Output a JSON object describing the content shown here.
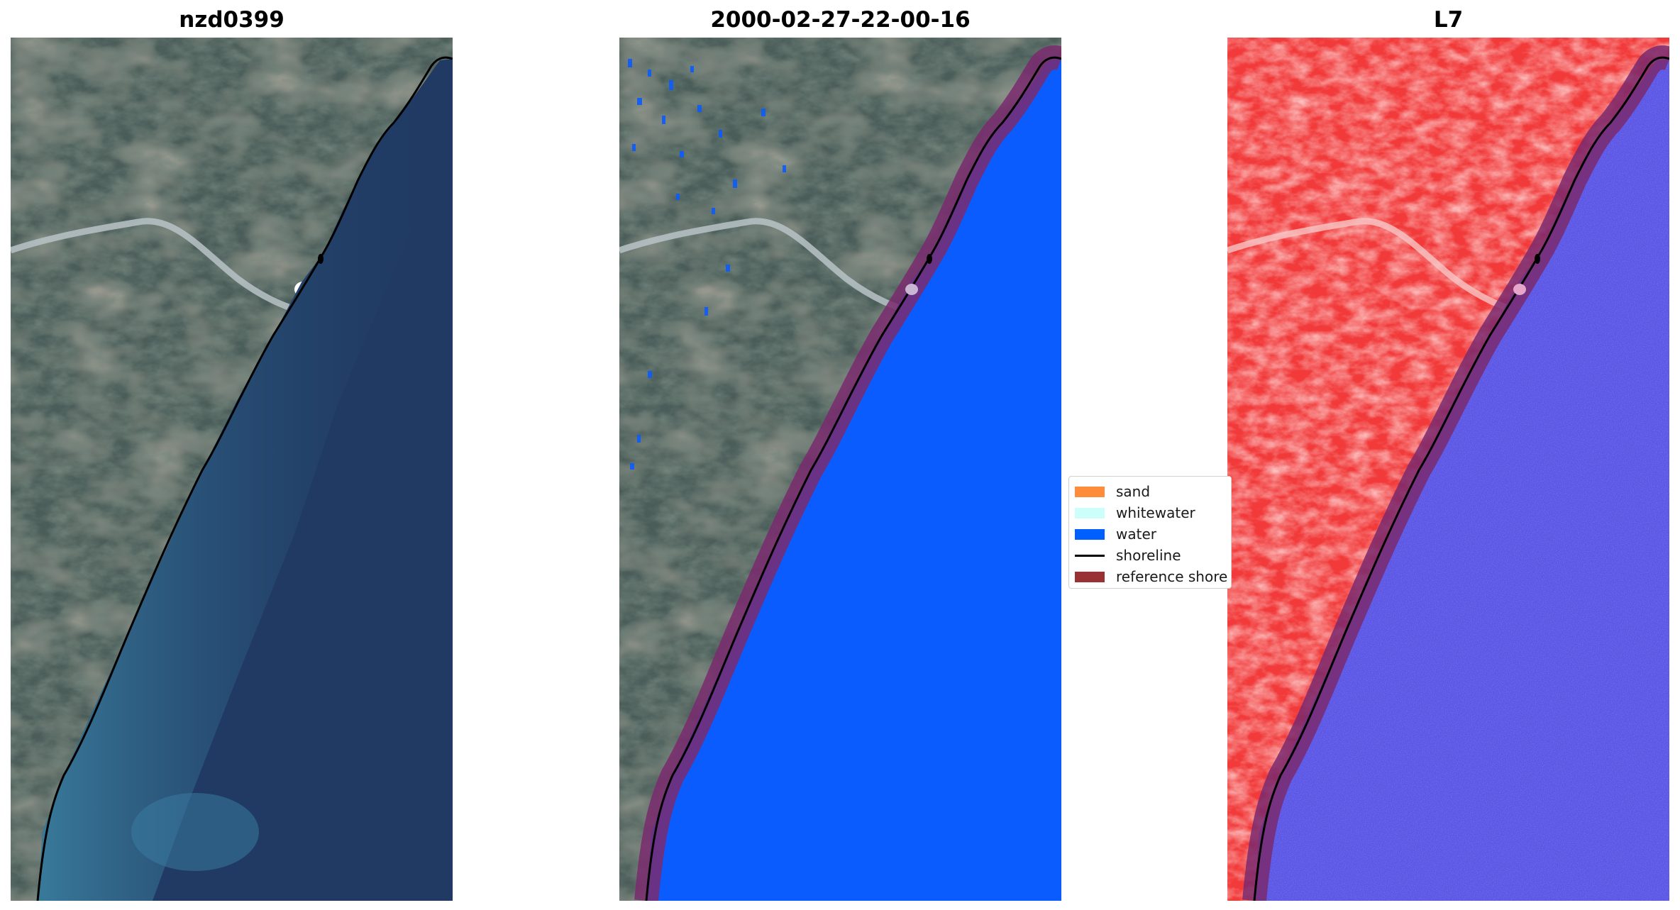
{
  "panels": [
    {
      "title": "nzd0399",
      "kind": "rgb-image"
    },
    {
      "title": "2000-02-27-22-00-16",
      "kind": "classified-image"
    },
    {
      "title": "L7",
      "kind": "false-color-image"
    }
  ],
  "legend": {
    "items": [
      {
        "label": "sand",
        "color": "#ff8c3a"
      },
      {
        "label": "whitewater",
        "color": "#ccfffc"
      },
      {
        "label": "water",
        "color": "#0060ff"
      },
      {
        "label": "shoreline",
        "color": "#000000"
      },
      {
        "label": "reference shore",
        "color": "#993333"
      }
    ]
  },
  "colors": {
    "land": "#4b5d59",
    "ocean": "#203a63",
    "water_class": "#0a5cff",
    "false_color_land": "#f23a3a",
    "false_color_water": "#5a55e6",
    "reference_buffer": "#7a2a6e"
  }
}
